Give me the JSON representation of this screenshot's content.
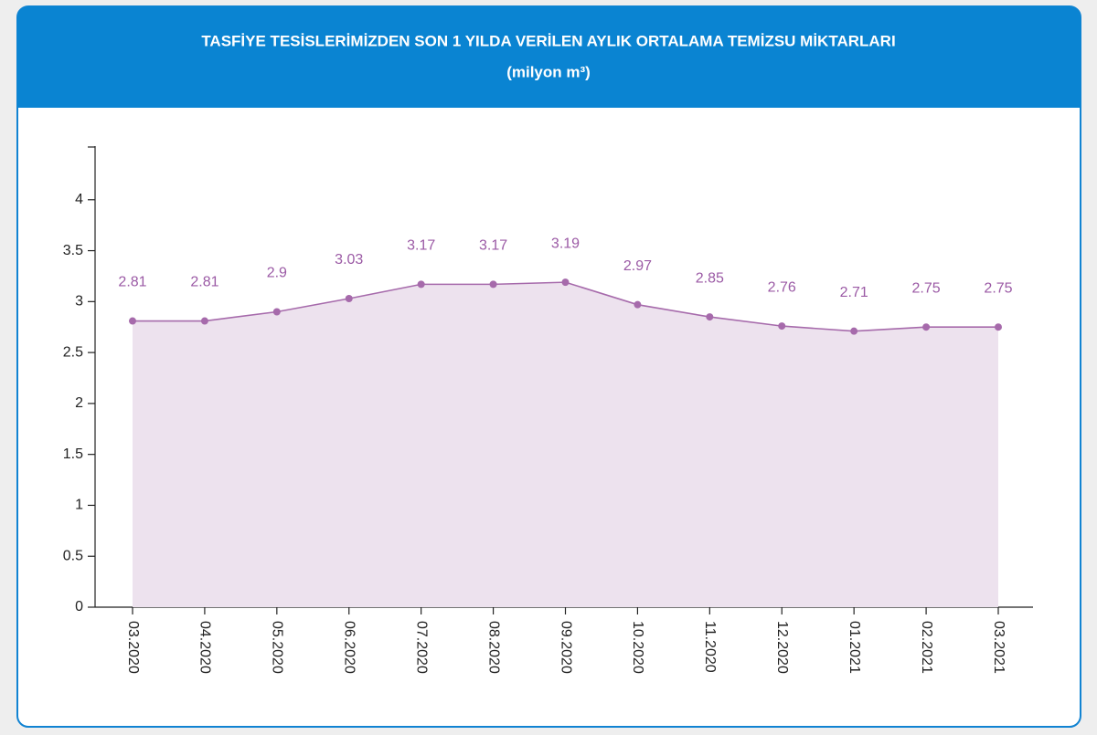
{
  "chart_data": {
    "type": "area",
    "title": "TASFİYE TESİSLERİMİZDEN SON 1 YILDA VERİLEN AYLIK ORTALAMA TEMİZSU MİKTARLARI",
    "subtitle": "(milyon m³)",
    "categories": [
      "03.2020",
      "04.2020",
      "05.2020",
      "06.2020",
      "07.2020",
      "08.2020",
      "09.2020",
      "10.2020",
      "11.2020",
      "12.2020",
      "01.2021",
      "02.2021",
      "03.2021"
    ],
    "values": [
      2.81,
      2.81,
      2.9,
      3.03,
      3.17,
      3.17,
      3.19,
      2.97,
      2.85,
      2.76,
      2.71,
      2.75,
      2.75
    ],
    "color": "#a66aab",
    "fill": "#ede2ee",
    "ylim": [
      0,
      4.5
    ],
    "yticks": [
      0,
      0.5,
      1,
      1.5,
      2,
      2.5,
      3,
      3.5,
      4
    ]
  }
}
